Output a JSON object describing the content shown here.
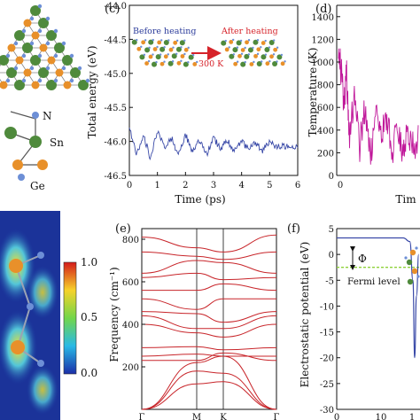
{
  "colors": {
    "energy_line": "#3a4aa8",
    "temperature_line": "#c0189a",
    "phonon_line": "#c8252a",
    "potential_line": "#3a4aa8",
    "fermi_line": "#8fd13a",
    "arrow_red": "#d6232a",
    "sn_atom": "#4f8a3c",
    "ge_atom": "#e8902a",
    "n_atom": "#6d8fd6"
  },
  "panel_a": {
    "atom_labels": [
      "N",
      "Sn",
      "Ge"
    ]
  },
  "panel_b": {
    "colorbar_ticks": [
      "1.0",
      "0.5",
      "0.0"
    ]
  },
  "chart_data": [
    {
      "panel": "c",
      "type": "line",
      "xlabel": "Time (ps)",
      "ylabel": "Total energy (eV)",
      "xlim": [
        0,
        6
      ],
      "ylim": [
        -46.5,
        -44.0
      ],
      "xticks": [
        "0",
        "1",
        "2",
        "3",
        "4",
        "5",
        "6"
      ],
      "yticks": [
        "-44.0",
        "-44.5",
        "-45.0",
        "-45.5",
        "-46.0",
        "-46.5"
      ],
      "series": [
        {
          "x": [
            0,
            0.25,
            0.5,
            0.75,
            1,
            1.25,
            1.5,
            1.75,
            2,
            2.25,
            2.5,
            2.75,
            3,
            3.25,
            3.5,
            3.75,
            4,
            4.25,
            4.5,
            4.75,
            5,
            5.25,
            5.5,
            5.75,
            6
          ],
          "values": [
            -45.8,
            -46.2,
            -45.9,
            -46.25,
            -45.85,
            -46.1,
            -45.95,
            -46.2,
            -45.9,
            -46.15,
            -46.0,
            -46.2,
            -45.95,
            -46.1,
            -45.98,
            -46.15,
            -46.0,
            -46.12,
            -46.02,
            -46.15,
            -45.98,
            -46.1,
            -46.05,
            -46.12,
            -46.05
          ]
        }
      ],
      "annotations": [
        "Before heating",
        "After heating",
        "300 K"
      ]
    },
    {
      "panel": "d",
      "type": "line",
      "xlabel": "Tim",
      "ylabel": "Temperature (K)",
      "ylim": [
        0,
        1500
      ],
      "xticks": [
        "0"
      ],
      "yticks": [
        "0",
        "200",
        "400",
        "600",
        "800",
        "1000",
        "1200",
        "1400"
      ],
      "series": [
        {
          "x": [
            0,
            0.05,
            0.1,
            0.15,
            0.2,
            0.3,
            0.4,
            0.5,
            0.6,
            0.7,
            0.8,
            0.9,
            1.0,
            1.1,
            1.2,
            1.3,
            1.4,
            1.5
          ],
          "values": [
            1000,
            950,
            600,
            900,
            350,
            700,
            250,
            600,
            150,
            500,
            300,
            550,
            200,
            450,
            180,
            400,
            250,
            350
          ]
        }
      ]
    },
    {
      "panel": "e",
      "type": "line",
      "xlabel": "",
      "ylabel": "Frequency (cm⁻¹)",
      "ylim": [
        0,
        850
      ],
      "xticks": [
        "Γ",
        "M",
        "K",
        "Γ"
      ],
      "yticks": [
        "200",
        "400",
        "600",
        "800"
      ],
      "series": [
        {
          "values": [
            810,
            760,
            740,
            820
          ]
        },
        {
          "values": [
            740,
            720,
            705,
            740
          ]
        },
        {
          "values": [
            640,
            700,
            690,
            640
          ]
        },
        {
          "values": [
            620,
            640,
            610,
            620
          ]
        },
        {
          "values": [
            560,
            560,
            590,
            560
          ]
        },
        {
          "values": [
            520,
            470,
            520,
            520
          ]
        },
        {
          "values": [
            460,
            450,
            410,
            460
          ]
        },
        {
          "values": [
            440,
            380,
            380,
            440
          ]
        },
        {
          "values": [
            400,
            360,
            340,
            400
          ]
        },
        {
          "values": [
            290,
            295,
            280,
            290
          ]
        },
        {
          "values": [
            250,
            260,
            250,
            250
          ]
        },
        {
          "values": [
            230,
            230,
            265,
            230
          ]
        },
        {
          "values": [
            0,
            220,
            250,
            0
          ]
        },
        {
          "values": [
            0,
            180,
            170,
            0
          ]
        },
        {
          "values": [
            0,
            120,
            130,
            0
          ]
        }
      ]
    },
    {
      "panel": "f",
      "type": "line",
      "xlabel": "",
      "ylabel": "Electrostatic potential (eV)",
      "ylim": [
        -30,
        5
      ],
      "xticks": [
        "0",
        "10",
        "1"
      ],
      "yticks": [
        "5",
        "0",
        "-5",
        "-10",
        "-15",
        "-20",
        "-25",
        "-30"
      ],
      "series": [
        {
          "x": [
            0,
            10,
            15,
            16.5,
            17.2,
            17.6,
            18.0,
            18.5
          ],
          "values": [
            3.2,
            3.2,
            3.2,
            2.5,
            -5,
            -20,
            -8,
            0
          ]
        }
      ],
      "fermi_level": -2.5,
      "annotations": [
        "Φ",
        "Fermi level"
      ]
    }
  ]
}
